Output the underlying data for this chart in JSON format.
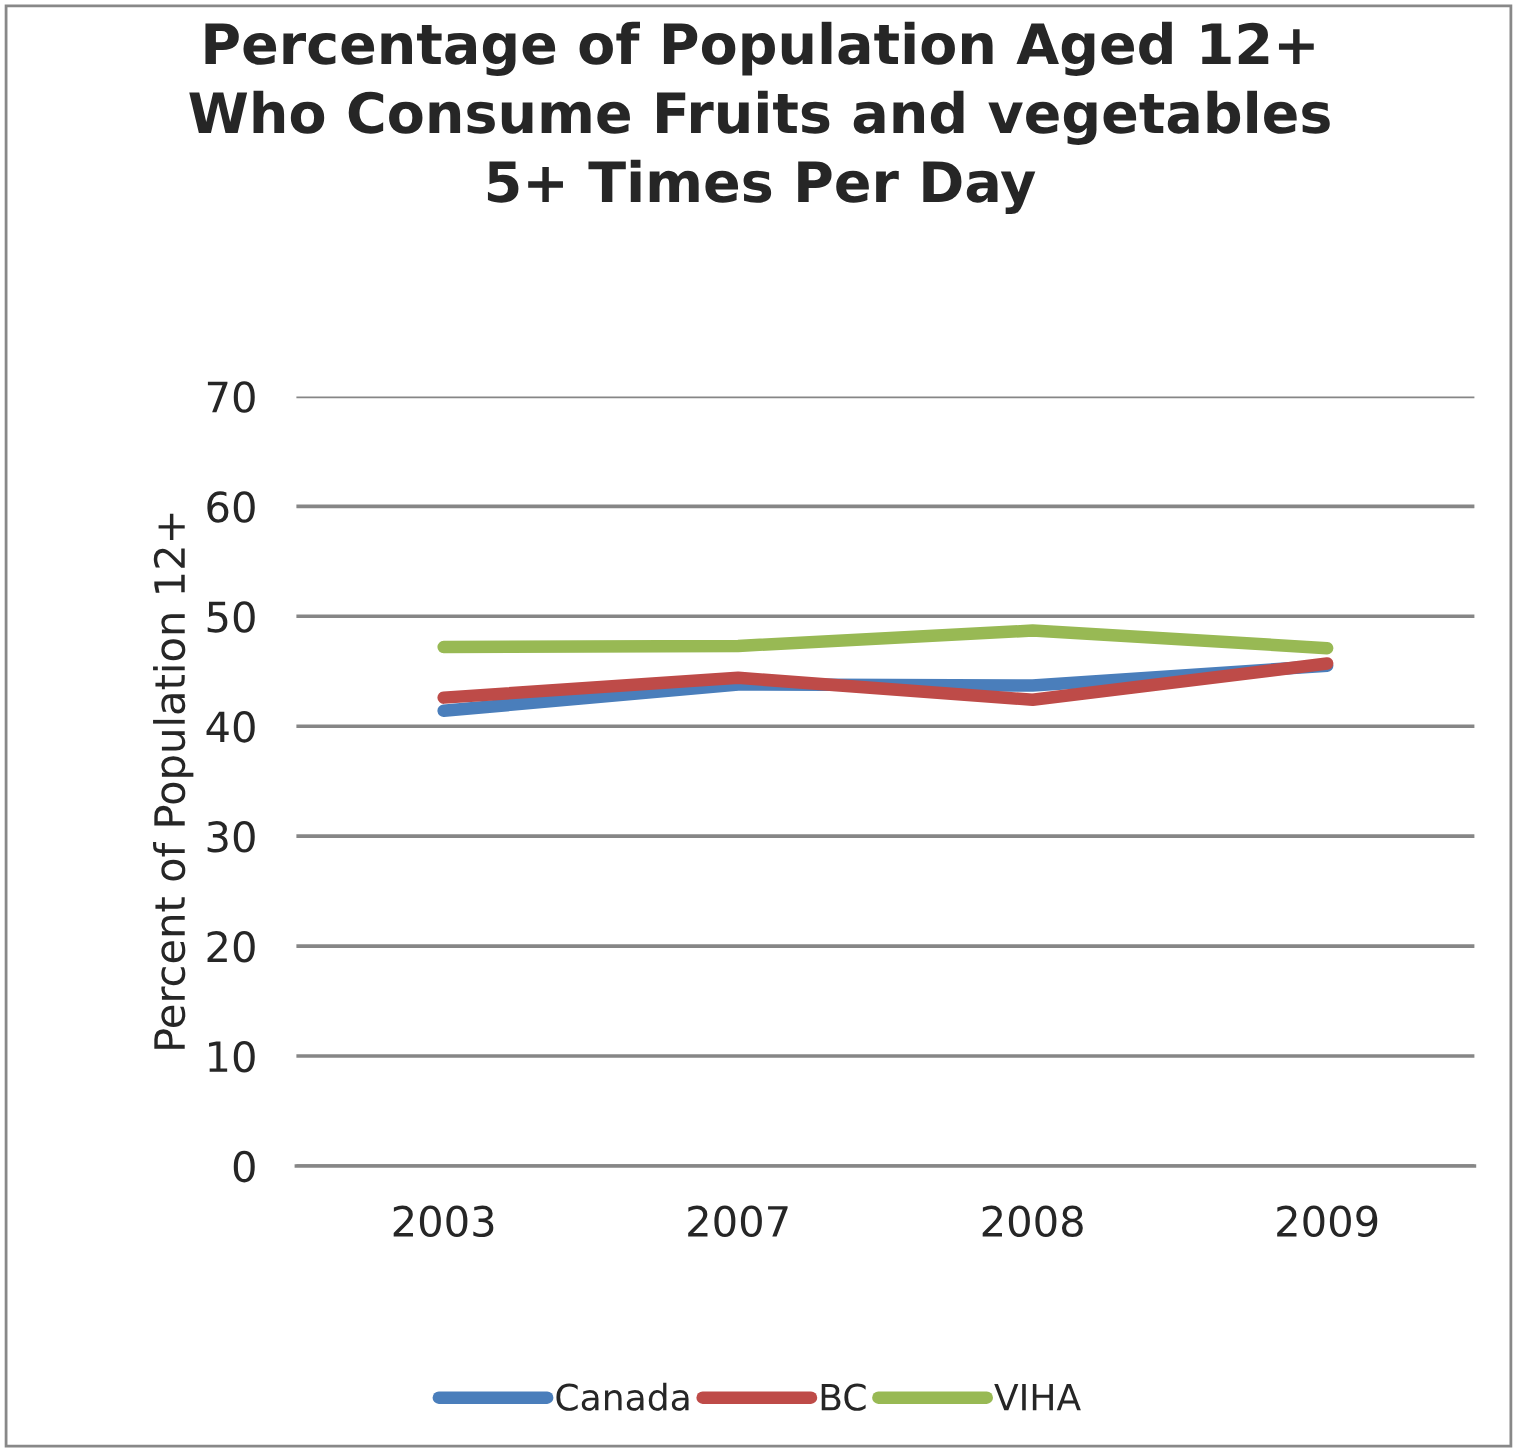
{
  "chart_data": {
    "type": "line",
    "title": "Percentage of Population Aged 12+\nWho Consume Fruits and vegetables\n5+ Times Per Day",
    "ylabel": "Percent of Population 12+",
    "categories": [
      "2003",
      "2007",
      "2008",
      "2009"
    ],
    "series": [
      {
        "name": "Canada",
        "color": "#4a7ebb",
        "values": [
          41.4,
          43.8,
          43.7,
          45.5
        ]
      },
      {
        "name": "BC",
        "color": "#be4b48",
        "values": [
          42.6,
          44.4,
          42.4,
          45.7
        ]
      },
      {
        "name": "VIHA",
        "color": "#98b954",
        "values": [
          47.2,
          47.3,
          48.7,
          47.1
        ]
      }
    ],
    "ylim": [
      0,
      70
    ],
    "yticks": [
      0,
      10,
      20,
      30,
      40,
      50,
      60,
      70
    ],
    "grid": "y",
    "legend": "bottom",
    "marker": "none",
    "line_style": "solid"
  }
}
